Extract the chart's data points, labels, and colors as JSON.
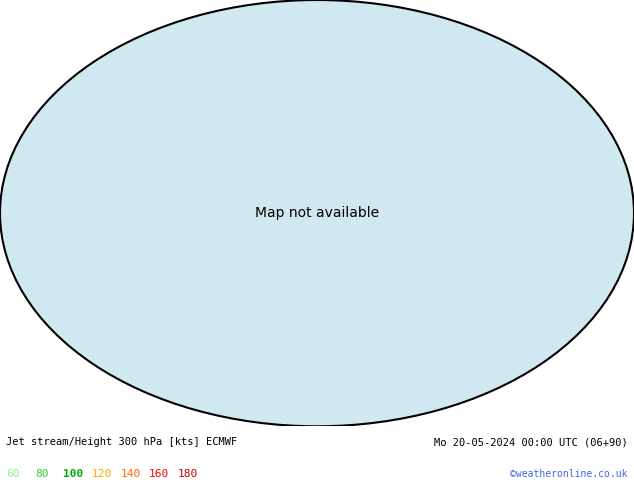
{
  "title_left": "Jet stream/Height 300 hPa [kts] ECMWF",
  "title_right": "Mo 20-05-2024 00:00 UTC (06+90)",
  "credit": "©weatheronline.co.uk",
  "legend_values": [
    60,
    80,
    100,
    120,
    140,
    160,
    180
  ],
  "legend_colors": [
    "#90ee90",
    "#32cd32",
    "#00aa00",
    "#ffa500",
    "#ff6600",
    "#ff0000",
    "#cc0000"
  ],
  "bg_color": "#ffffff",
  "text_color": "#000000",
  "map_bg": "#d0e8f0",
  "land_color": "#c8c8c8",
  "figure_width": 6.34,
  "figure_height": 4.9,
  "dpi": 100
}
